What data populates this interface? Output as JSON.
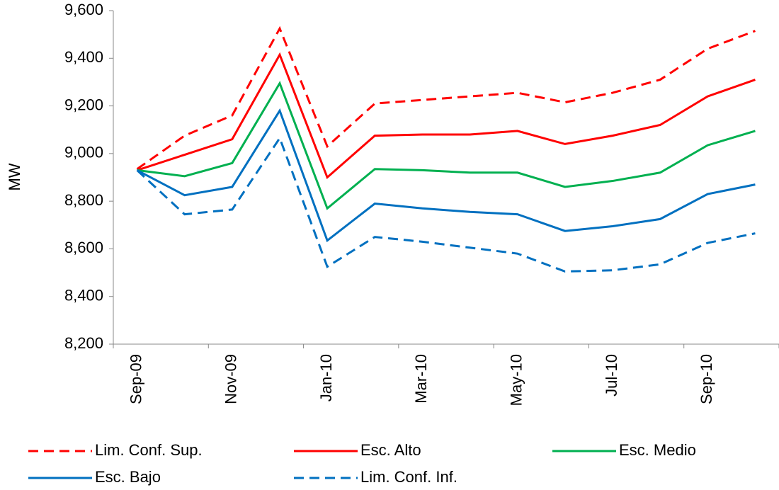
{
  "chart_data": {
    "type": "line",
    "y_label": "MW",
    "categories": [
      "Sep-09",
      null,
      "Nov-09",
      null,
      "Jan-10",
      null,
      "Mar-10",
      null,
      "May-10",
      null,
      "Jul-10",
      null,
      "Sep-10",
      null
    ],
    "ylim": [
      8200,
      9600
    ],
    "yticks": [
      {
        "value": 8200,
        "label": "8,200"
      },
      {
        "value": 8400,
        "label": "8,400"
      },
      {
        "value": 8600,
        "label": "8,600"
      },
      {
        "value": 8800,
        "label": "8,800"
      },
      {
        "value": 9000,
        "label": "9,000"
      },
      {
        "value": 9200,
        "label": "9,200"
      },
      {
        "value": 9400,
        "label": "9,400"
      },
      {
        "value": 9600,
        "label": "9,600"
      }
    ],
    "legend": "bottom",
    "series": [
      {
        "name": "Lim. Conf. Sup.",
        "color": "#ff0000",
        "dashed": true,
        "values": [
          8935,
          9075,
          9160,
          9525,
          9030,
          9210,
          9225,
          9240,
          9255,
          9215,
          9255,
          9310,
          9440,
          9515
        ]
      },
      {
        "name": "Esc. Alto",
        "color": "#ff0000",
        "dashed": false,
        "values": [
          8930,
          8995,
          9060,
          9415,
          8900,
          9075,
          9080,
          9080,
          9095,
          9040,
          9075,
          9120,
          9240,
          9310
        ]
      },
      {
        "name": "Esc. Medio",
        "color": "#00b050",
        "dashed": false,
        "values": [
          8930,
          8905,
          8960,
          9295,
          8770,
          8935,
          8930,
          8920,
          8920,
          8860,
          8885,
          8920,
          9035,
          9095
        ]
      },
      {
        "name": "Esc. Bajo",
        "color": "#0070c0",
        "dashed": false,
        "values": [
          8930,
          8825,
          8860,
          9180,
          8635,
          8790,
          8770,
          8755,
          8745,
          8675,
          8695,
          8725,
          8830,
          8870
        ]
      },
      {
        "name": "Lim. Conf. Inf.",
        "color": "#0070c0",
        "dashed": true,
        "values": [
          8930,
          8745,
          8765,
          9065,
          8525,
          8650,
          8630,
          8605,
          8580,
          8505,
          8510,
          8535,
          8625,
          8665
        ]
      }
    ]
  }
}
